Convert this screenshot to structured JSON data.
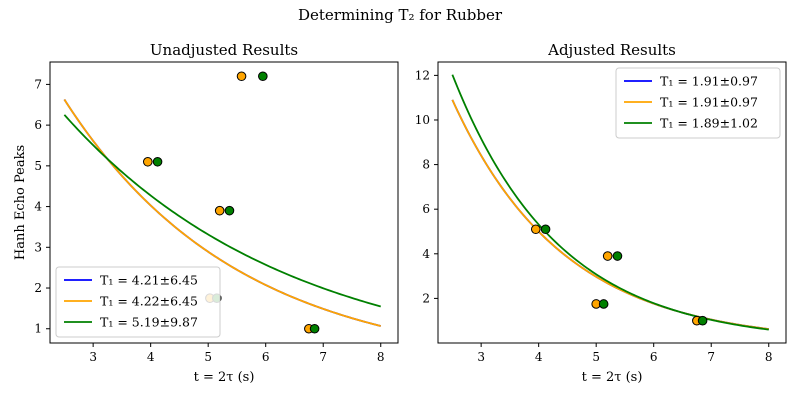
{
  "figure": {
    "suptitle": "Determining T₂ for Rubber"
  },
  "chart_data": [
    {
      "type": "line",
      "title": "Unadjusted Results",
      "xlabel": "t = 2τ (s)",
      "ylabel": "Hanh Echo Peaks",
      "xlim": [
        2.25,
        8.3
      ],
      "ylim": [
        0.65,
        7.55
      ],
      "xticks": [
        3,
        4,
        5,
        6,
        7,
        8
      ],
      "yticks": [
        1,
        2,
        3,
        4,
        5,
        6,
        7
      ],
      "legend_location": "lower-left",
      "curve_x_range": [
        2.5,
        8.0
      ],
      "series": [
        {
          "name": "T₁ = 4.21±6.45",
          "color": "#0000ff",
          "kind": "curve",
          "a": 15.2,
          "b": 0.332
        },
        {
          "name": "T₁ = 4.22±6.45",
          "color": "#ffa500",
          "kind": "curve",
          "a": 15.2,
          "b": 0.332
        },
        {
          "name": "T₁ = 5.19±9.87",
          "color": "#008000",
          "kind": "curve",
          "a": 11.8,
          "b": 0.254
        }
      ],
      "points": [
        {
          "color": "#ffa500",
          "x": [
            3.95,
            5.2,
            5.03,
            6.75,
            5.58
          ],
          "y": [
            5.1,
            3.9,
            1.75,
            1.0,
            7.2
          ]
        },
        {
          "color": "#008000",
          "x": [
            4.12,
            5.37,
            5.15,
            6.85,
            5.95
          ],
          "y": [
            5.1,
            3.9,
            1.75,
            1.0,
            7.2
          ]
        }
      ]
    },
    {
      "type": "line",
      "title": "Adjusted Results",
      "xlabel": "t = 2τ (s)",
      "ylabel": "",
      "xlim": [
        2.25,
        8.3
      ],
      "ylim": [
        0.0,
        12.6
      ],
      "xticks": [
        3,
        4,
        5,
        6,
        7,
        8
      ],
      "yticks": [
        2,
        4,
        6,
        8,
        10,
        12
      ],
      "legend_location": "upper-right",
      "curve_x_range": [
        2.5,
        8.0
      ],
      "series": [
        {
          "name": "T₁ = 1.91±0.97",
          "color": "#0000ff",
          "kind": "curve",
          "a": 40.0,
          "b": 0.52
        },
        {
          "name": "T₁ = 1.91±0.97",
          "color": "#ffa500",
          "kind": "curve",
          "a": 40.0,
          "b": 0.52
        },
        {
          "name": "T₁ = 1.89±1.02",
          "color": "#008000",
          "kind": "curve",
          "a": 47.0,
          "b": 0.545
        }
      ],
      "points": [
        {
          "color": "#ffa500",
          "x": [
            3.95,
            5.2,
            5.0,
            6.75
          ],
          "y": [
            5.1,
            3.9,
            1.75,
            1.0
          ]
        },
        {
          "color": "#008000",
          "x": [
            4.12,
            5.37,
            5.13,
            6.85
          ],
          "y": [
            5.1,
            3.9,
            1.75,
            1.0
          ]
        }
      ]
    }
  ]
}
